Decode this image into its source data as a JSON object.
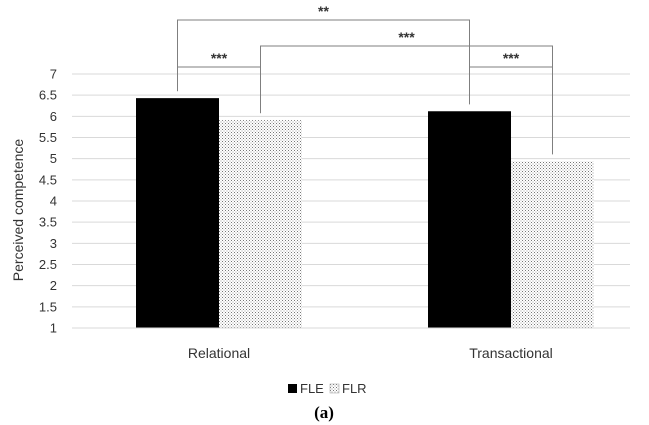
{
  "chart_data": {
    "type": "bar",
    "ylabel": "Perceived competence",
    "xlabel": "",
    "ylim": [
      1,
      7
    ],
    "yticks": [
      "1",
      "1.5",
      "2",
      "2.5",
      "3",
      "3.5",
      "4",
      "4.5",
      "5",
      "5.5",
      "6",
      "6.5",
      "7"
    ],
    "grid": true,
    "categories": [
      "Relational",
      "Transactional"
    ],
    "series": [
      {
        "name": "FLE",
        "values": [
          6.43,
          6.12
        ],
        "color": "#000000",
        "pattern": "solid"
      },
      {
        "name": "FLR",
        "values": [
          5.91,
          4.94
        ],
        "color": "#888888",
        "pattern": "dotted"
      }
    ],
    "significance": [
      {
        "label": "**",
        "from": "Relational FLE",
        "to": "Transactional FLE"
      },
      {
        "label": "***",
        "from": "Relational FLE",
        "to": "Relational FLR"
      },
      {
        "label": "***",
        "from": "Relational FLR",
        "to": "Transactional FLR"
      },
      {
        "label": "***",
        "from": "Transactional FLE",
        "to": "Transactional FLR"
      }
    ],
    "legend_position": "bottom-center",
    "caption": "(a)"
  }
}
